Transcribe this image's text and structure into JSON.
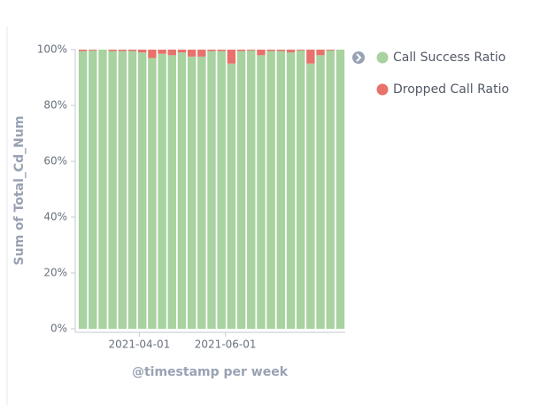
{
  "chart_data": {
    "type": "stacked-bar",
    "y_label": "Sum of Total_Cd_Num",
    "x_label": "@timestamp per week",
    "categories": [
      null,
      null,
      null,
      null,
      null,
      null,
      null,
      null,
      null,
      null,
      null,
      null,
      null,
      null,
      null,
      null,
      null,
      null,
      null,
      null,
      null,
      null,
      null,
      null,
      null,
      null,
      null
    ],
    "series": [
      {
        "name": "Call Success Ratio",
        "color": "#a8d29f",
        "values": [
          99.5,
          99.7,
          100,
          99.5,
          99.5,
          99.5,
          99,
          97,
          98.5,
          98,
          99,
          97.5,
          97.5,
          99.5,
          99.5,
          95,
          99.5,
          99.7,
          98,
          99.5,
          99.5,
          99,
          99.7,
          95,
          98,
          99.7,
          100
        ]
      },
      {
        "name": "Dropped Call Ratio",
        "color": "#e8726b",
        "values": [
          0.5,
          0.3,
          0,
          0.5,
          0.5,
          0.5,
          1,
          3,
          1.5,
          2,
          1,
          2.5,
          2.5,
          0.5,
          0.5,
          5,
          0.5,
          0.3,
          2,
          0.5,
          0.5,
          1,
          0.3,
          5,
          2,
          0.3,
          0
        ]
      }
    ],
    "ylim": [
      0,
      100
    ],
    "yticks": [
      {
        "value": 0,
        "label": "0%"
      },
      {
        "value": 20,
        "label": "20%"
      },
      {
        "value": 40,
        "label": "40%"
      },
      {
        "value": 60,
        "label": "60%"
      },
      {
        "value": 80,
        "label": "80%"
      },
      {
        "value": 100,
        "label": "100%"
      }
    ],
    "xticks": [
      {
        "value": 5.7,
        "label": "2021-04-01"
      },
      {
        "value": 14.4,
        "label": "2021-06-01"
      }
    ],
    "legend": "right"
  }
}
